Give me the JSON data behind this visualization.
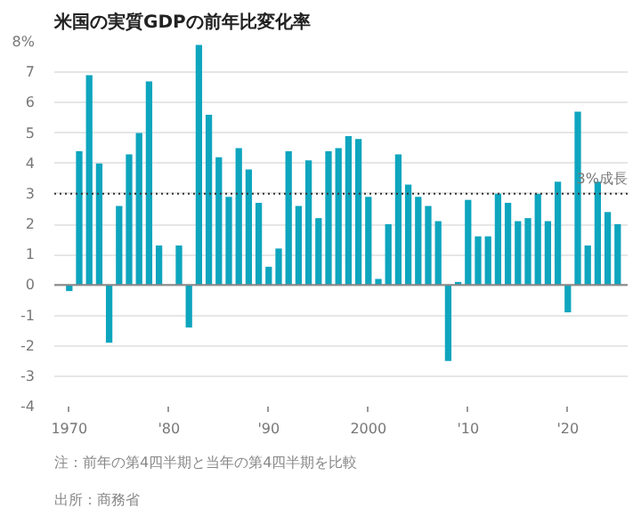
{
  "chart_data": {
    "type": "bar",
    "title": "米国の実質GDPの前年比変化率",
    "x": [
      1970,
      1971,
      1972,
      1973,
      1974,
      1975,
      1976,
      1977,
      1978,
      1979,
      1980,
      1981,
      1982,
      1983,
      1984,
      1985,
      1986,
      1987,
      1988,
      1989,
      1990,
      1991,
      1992,
      1993,
      1994,
      1995,
      1996,
      1997,
      1998,
      1999,
      2000,
      2001,
      2002,
      2003,
      2004,
      2005,
      2006,
      2007,
      2008,
      2009,
      2010,
      2011,
      2012,
      2013,
      2014,
      2015,
      2016,
      2017,
      2018,
      2019,
      2020,
      2021,
      2022,
      2023,
      2024,
      2025
    ],
    "values": [
      -0.2,
      4.4,
      6.9,
      4.0,
      -1.9,
      2.6,
      4.3,
      5.0,
      6.7,
      1.3,
      0.0,
      1.3,
      -1.4,
      7.9,
      5.6,
      4.2,
      2.9,
      4.5,
      3.8,
      2.7,
      0.6,
      1.2,
      4.4,
      2.6,
      4.1,
      2.2,
      4.4,
      4.5,
      4.9,
      4.8,
      2.9,
      0.2,
      2.0,
      4.3,
      3.3,
      2.9,
      2.6,
      2.1,
      -2.5,
      0.1,
      2.8,
      1.6,
      1.6,
      3.0,
      2.7,
      2.1,
      2.2,
      3.0,
      2.1,
      3.4,
      -0.9,
      5.7,
      1.3,
      3.4,
      2.4,
      2.0
    ],
    "color": "#0ea5be",
    "xlim": [
      1968.5,
      2026
    ],
    "xticks": [
      {
        "value": 1970,
        "label": "1970"
      },
      {
        "value": 1980,
        "label": "'80"
      },
      {
        "value": 1990,
        "label": "'90"
      },
      {
        "value": 2000,
        "label": "2000"
      },
      {
        "value": 2010,
        "label": "'10"
      },
      {
        "value": 2020,
        "label": "'20"
      }
    ],
    "ylim": [
      -4,
      8
    ],
    "yticks": [
      -4,
      -3,
      -2,
      -1,
      0,
      1,
      2,
      3,
      4,
      5,
      6,
      7,
      {
        "value": 8,
        "label": "8%"
      }
    ],
    "grid": "y",
    "ref_lines": [
      {
        "axis": "y",
        "value": 3,
        "label": "3%成長",
        "color": "#333333",
        "line_style": "dotted"
      }
    ],
    "annotations": [
      "注：前年の第4四半期と当年の第4四半期を比較",
      "出所：商務省"
    ]
  }
}
